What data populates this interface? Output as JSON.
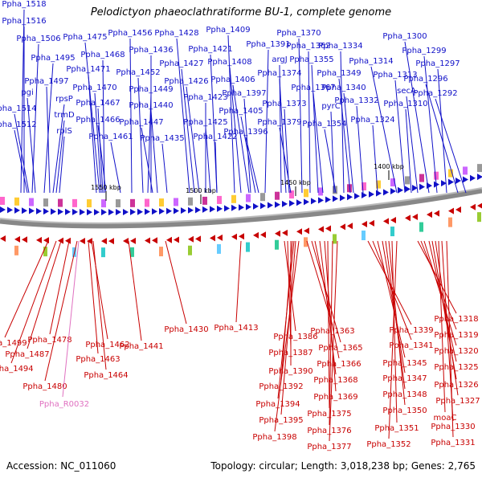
{
  "title": "Pelodictyon phaeoclathratiforme BU-1, complete genome",
  "footer": {
    "accession": "Accession: NC_011060",
    "summary": "Topology: circular; Length: 3,018,238 bp; Genes: 2,765"
  },
  "colors": {
    "forward_strand": "#1010c8",
    "reverse_strand": "#c80000",
    "rna": "#e070c0",
    "backbone": "#888888"
  },
  "scale_ticks": [
    "1550 kbp",
    "1500 kbp",
    "1450 kbp",
    "1400 kbp"
  ],
  "forward_genes": [
    "Ppha_1518",
    "Ppha_1516",
    "Ppha_1506",
    "Ppha_1495",
    "pgi",
    "Ppha_1514",
    "Ppha_1512",
    "Ppha_1497",
    "rpsP",
    "trmD",
    "rplS",
    "Ppha_1475",
    "Ppha_1468",
    "Ppha_1471",
    "Ppha_1470",
    "Ppha_1467",
    "Ppha_1466",
    "Ppha_1461",
    "Ppha_1456",
    "Ppha_1436",
    "Ppha_1452",
    "Ppha_1449",
    "Ppha_1440",
    "Ppha_1447",
    "Ppha_1435",
    "Ppha_1428",
    "Ppha_1427",
    "Ppha_1426",
    "Ppha_1423",
    "Ppha_1425",
    "Ppha_1422",
    "Ppha_1421",
    "Ppha_1409",
    "Ppha_1408",
    "Ppha_1406",
    "Ppha_1397",
    "Ppha_1405",
    "Ppha_1396",
    "Ppha_1391",
    "argJ",
    "Ppha_1374",
    "Ppha_1373",
    "Ppha_1379",
    "Ppha_1370",
    "Ppha_1362",
    "Ppha_1355",
    "Ppha_1367",
    "pyrC",
    "Ppha_1354",
    "Ppha_1334",
    "Ppha_1349",
    "Ppha_1340",
    "Ppha_1332",
    "Ppha_1324",
    "Ppha_1314",
    "Ppha_1313",
    "Ppha_1310",
    "Ppha_1300",
    "Ppha_1299",
    "Ppha_1297",
    "Ppha_1296",
    "Ppha_1292",
    "secA"
  ],
  "reverse_genes": [
    "Ppha_1499",
    "Ppha_1494",
    "Ppha_1487",
    "Ppha_1478",
    "Ppha_1480",
    "Ppha_1462",
    "Ppha_1463",
    "Ppha_1464",
    "Ppha_1441",
    "Ppha_1430",
    "Ppha_1413",
    "Ppha_1386",
    "Ppha_1387",
    "Ppha_1390",
    "Ppha_1392",
    "Ppha_1394",
    "Ppha_1395",
    "Ppha_1398",
    "Ppha_1363",
    "Ppha_1365",
    "Ppha_1366",
    "Ppha_1368",
    "Ppha_1369",
    "Ppha_1375",
    "Ppha_1376",
    "Ppha_1377",
    "Ppha_1339",
    "Ppha_1341",
    "Ppha_1345",
    "Ppha_1347",
    "Ppha_1348",
    "Ppha_1350",
    "Ppha_1351",
    "Ppha_1352",
    "Ppha_1318",
    "Ppha_1319",
    "Ppha_1320",
    "Ppha_1325",
    "Ppha_1326",
    "Ppha_1327",
    "moaC",
    "Ppha_1330",
    "Ppha_1331"
  ],
  "rna_genes": [
    "Ppha_R0032"
  ]
}
